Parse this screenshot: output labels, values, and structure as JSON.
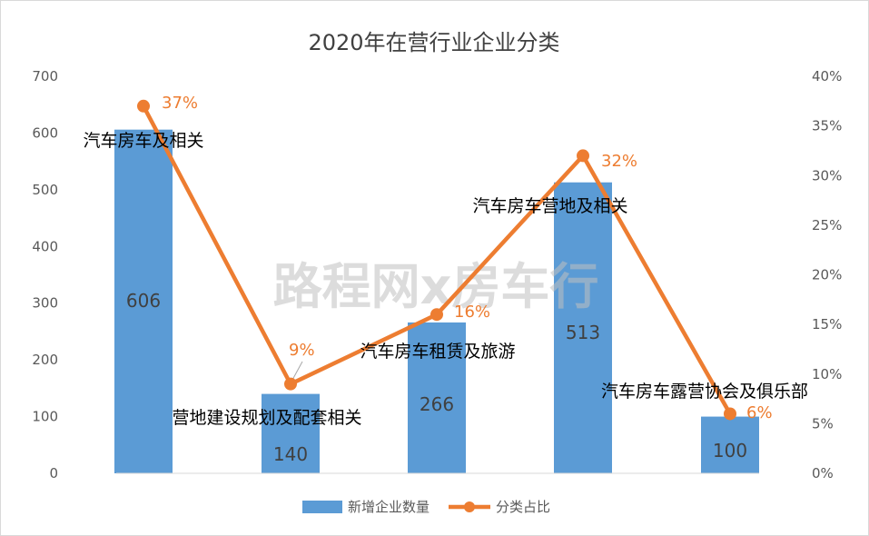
{
  "chart_data": {
    "type": "bar",
    "title": "2020年在营行业企业分类",
    "categories": [
      "汽车房车及相关",
      "营地建设规划及配套相关",
      "汽车房车租赁及旅游",
      "汽车房车营地及相关",
      "汽车房车露营协会及俱乐部"
    ],
    "series": [
      {
        "name": "新增企业数量",
        "type": "bar",
        "axis": "left",
        "color": "#5B9BD5",
        "values": [
          606,
          140,
          266,
          513,
          100
        ],
        "labels": [
          "606",
          "140",
          "266",
          "513",
          "100"
        ]
      },
      {
        "name": "分类占比",
        "type": "line",
        "axis": "right",
        "color": "#ED7D31",
        "values": [
          37,
          9,
          16,
          32,
          6
        ],
        "labels": [
          "37%",
          "9%",
          "16%",
          "32%",
          "6%"
        ]
      }
    ],
    "ylim": [
      0,
      700
    ],
    "y2lim": [
      0,
      40
    ],
    "yticks": [
      "0",
      "100",
      "200",
      "300",
      "400",
      "500",
      "600",
      "700"
    ],
    "y2ticks": [
      "0%",
      "5%",
      "10%",
      "15%",
      "20%",
      "25%",
      "30%",
      "35%",
      "40%"
    ],
    "grid": false,
    "legend": "bottom"
  },
  "watermark": "路程网x房车行"
}
